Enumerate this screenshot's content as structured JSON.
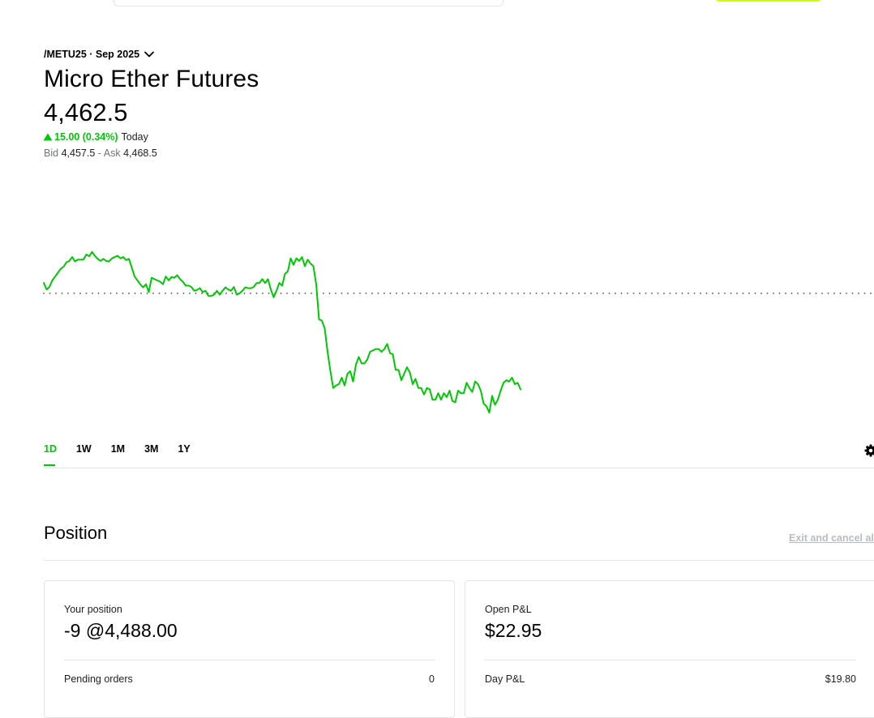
{
  "header": {
    "symbol_label": "/METU25 · Sep 2025",
    "title": "Micro Ether Futures",
    "price": "4,462.5",
    "change": "15.00 (0.34%)",
    "change_period": "Today",
    "bid_label": "Bid",
    "bid_value": "4,457.5",
    "separator": "-",
    "ask_label": "Ask",
    "ask_value": "4,468.5"
  },
  "colors": {
    "accent": "#00c805",
    "cta": "#ccff00",
    "divider": "#e3e5e8",
    "muted_link": "#b8bcc0"
  },
  "chart_data": {
    "type": "line",
    "values": [
      4451.5,
      4449.0,
      4450.0,
      4452.5,
      4454.0,
      4455.5,
      4457.0,
      4457.8,
      4459.5,
      4460.0,
      4461.5,
      4459.8,
      4460.5,
      4460.5,
      4460.6,
      4462.5,
      4461.8,
      4463.5,
      4462.0,
      4460.8,
      4460.0,
      4460.8,
      4460.0,
      4459.8,
      4461.0,
      4461.5,
      4462.0,
      4461.0,
      4461.5,
      4460.3,
      4460.8,
      4457.5,
      4454.0,
      4452.5,
      4451.0,
      4449.8,
      4451.0,
      4448.0,
      4453.5,
      4453.0,
      4452.5,
      4452.0,
      4451.0,
      4454.0,
      4452.5,
      4453.8,
      4453.5,
      4454.5,
      4453.0,
      4452.0,
      4450.5,
      4450.5,
      4450.0,
      4448.5,
      4448.8,
      4449.5,
      4448.0,
      4448.5,
      4446.5,
      4446.5,
      4447.0,
      4448.5,
      4447.0,
      4448.5,
      4449.8,
      4449.0,
      4448.5,
      4450.0,
      4447.0,
      4447.5,
      4448.5,
      4449.8,
      4449.5,
      4449.5,
      4450.0,
      4451.5,
      4451.5,
      4453.0,
      4451.5,
      4453.0,
      4449.0,
      4446.0,
      4448.5,
      4451.5,
      4450.5,
      4455.0,
      4456.0,
      4461.0,
      4458.5,
      4461.0,
      4460.0,
      4461.5,
      4458.0,
      4460.5,
      4459.0,
      4458.0,
      4451.0,
      4437.5,
      4437.0,
      4434.0,
      4425.0,
      4417.5,
      4411.0,
      4412.0,
      4412.5,
      4415.0,
      4412.0,
      4416.5,
      4417.5,
      4413.5,
      4420.0,
      4423.0,
      4420.5,
      4420.5,
      4422.0,
      4425.0,
      4425.5,
      4426.0,
      4426.0,
      4425.0,
      4426.0,
      4428.0,
      4424.5,
      4424.0,
      4418.0,
      4418.0,
      4414.0,
      4416.5,
      4419.0,
      4417.0,
      4412.5,
      4414.5,
      4411.0,
      4411.0,
      4408.5,
      4411.0,
      4410.5,
      4406.5,
      4406.5,
      4409.0,
      4406.5,
      4409.0,
      4407.5,
      4410.0,
      4406.0,
      4405.5,
      4410.0,
      4409.0,
      4409.0,
      4413.0,
      4411.0,
      4409.5,
      4413.5,
      4412.5,
      4410.0,
      4405.0,
      4404.0,
      4401.5,
      4408.0,
      4404.5,
      4406.5,
      4410.0,
      4413.0,
      4414.0,
      4413.5,
      4415.0,
      4412.5,
      4413.0,
      4410.5
    ],
    "baseline": 4447.5,
    "ylim": [
      4395,
      4470
    ],
    "grid": false
  },
  "range_tabs": [
    {
      "label": "1D",
      "active": true
    },
    {
      "label": "1W",
      "active": false
    },
    {
      "label": "1M",
      "active": false
    },
    {
      "label": "3M",
      "active": false
    },
    {
      "label": "1Y",
      "active": false
    }
  ],
  "position": {
    "section_title": "Position",
    "exit_link": "Exit and cancel all",
    "your_position_label": "Your position",
    "your_position_value": "-9 @4,488.00",
    "pending_orders_label": "Pending orders",
    "pending_orders_value": "0",
    "open_pl_label": "Open P&L",
    "open_pl_value": "$22.95",
    "day_pl_label": "Day P&L",
    "day_pl_value": "$19.80"
  }
}
